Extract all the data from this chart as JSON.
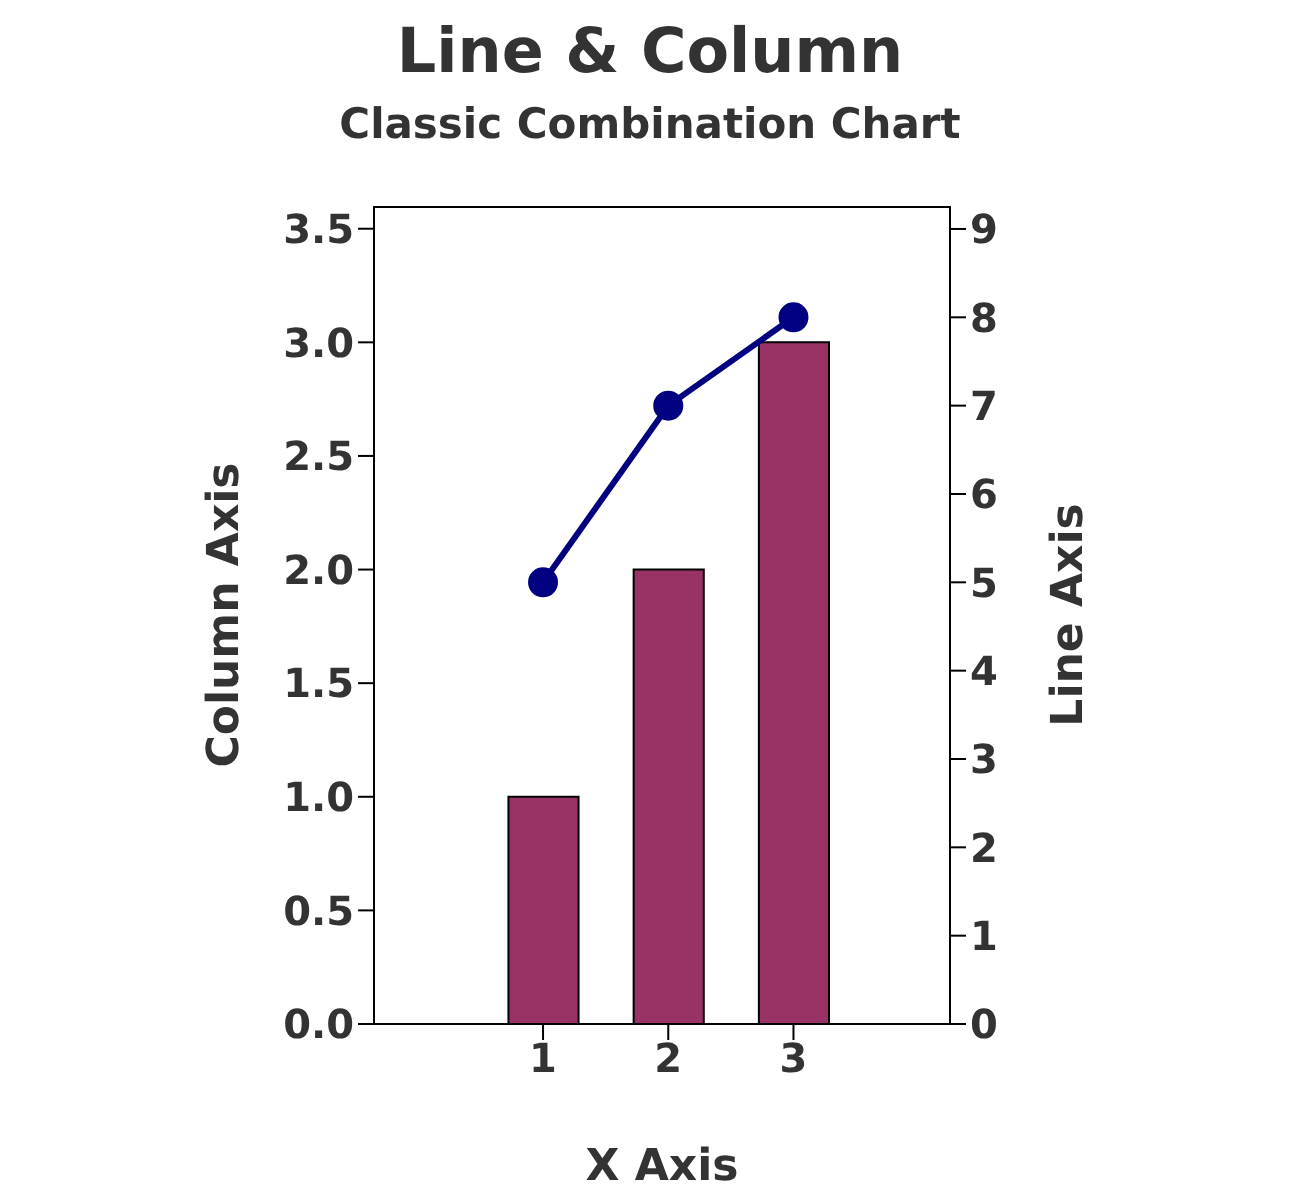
{
  "chart_data": {
    "type": "bar",
    "title": "Line & Column",
    "subtitle": "Classic Combination Chart",
    "xlabel": "X Axis",
    "ylabel": "Column Axis",
    "y2label": "Line Axis",
    "x": [
      1,
      2,
      3
    ],
    "xlim": [
      -0.35,
      4.25
    ],
    "xticks": [
      1,
      2,
      3
    ],
    "ylim": [
      0,
      3.6
    ],
    "yticks": [
      {
        "value": 0,
        "label": "0.0"
      },
      0.5,
      {
        "value": 1,
        "label": "1.0"
      },
      1.5,
      {
        "value": 2,
        "label": "2.0"
      },
      2.5,
      {
        "value": 3,
        "label": "3.0"
      },
      3.5
    ],
    "y2lim": [
      0,
      9.26
    ],
    "y2ticks": [
      0,
      1,
      2,
      3,
      4,
      5,
      6,
      7,
      8,
      9
    ],
    "series": [
      {
        "color": "#993366",
        "values": [
          1,
          2,
          3
        ]
      },
      {
        "type": "line",
        "axis": "y2",
        "color": "#000080",
        "values": [
          5,
          7,
          8
        ],
        "marker": "circle",
        "line_style": "solid"
      }
    ],
    "grid": false,
    "legend": false
  }
}
